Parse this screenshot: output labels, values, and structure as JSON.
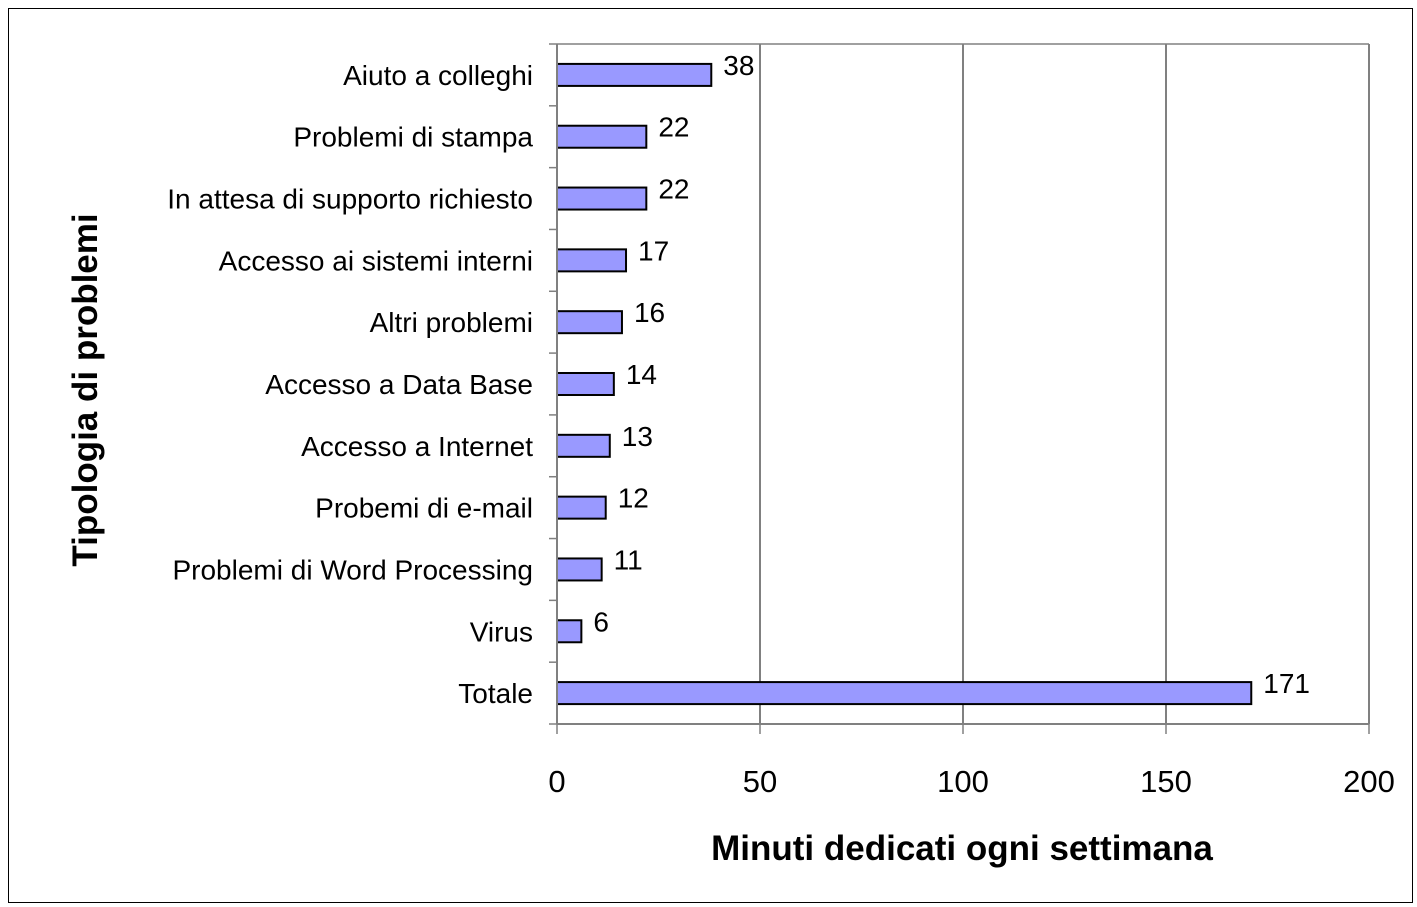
{
  "chart_data": {
    "type": "bar",
    "orientation": "horizontal",
    "categories": [
      "Aiuto a colleghi",
      "Problemi di stampa",
      "In attesa di supporto richiesto",
      "Accesso ai sistemi interni",
      "Altri problemi",
      "Accesso a Data Base",
      "Accesso a Internet",
      "Probemi di e-mail",
      "Problemi di Word Processing",
      "Virus",
      "Totale"
    ],
    "values": [
      38,
      22,
      22,
      17,
      16,
      14,
      13,
      12,
      11,
      6,
      171
    ],
    "xlabel": "Minuti dedicati ogni settimana",
    "ylabel": "Tipologia di problemi",
    "xlim": [
      0,
      200
    ],
    "xticks": [
      0,
      50,
      100,
      150,
      200
    ],
    "grid": "vertical",
    "data_labels": true,
    "colors": {
      "bar_fill": "#9999ff",
      "bar_stroke": "#000000",
      "grid": "#000000",
      "axis": "#808080"
    }
  }
}
